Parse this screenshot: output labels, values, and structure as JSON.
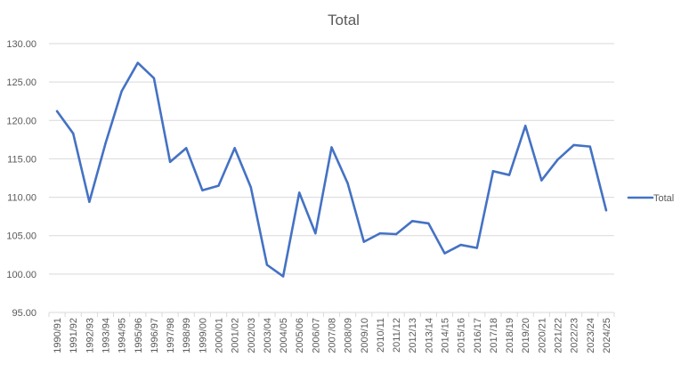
{
  "chart_data": {
    "type": "line",
    "title": "Total",
    "xlabel": "",
    "ylabel": "",
    "ylim": [
      95,
      130
    ],
    "yticks": [
      "95.00",
      "100.00",
      "105.00",
      "110.00",
      "115.00",
      "120.00",
      "125.00",
      "130.00"
    ],
    "grid": "horizontal",
    "legend_position": "right",
    "categories": [
      "1990/91",
      "1991/92",
      "1992/93",
      "1993/94",
      "1994/95",
      "1995/96",
      "1996/97",
      "1997/98",
      "1998/99",
      "1999/00",
      "2000/01",
      "2001/02",
      "2002/03",
      "2003/04",
      "2004/05",
      "2005/06",
      "2006/07",
      "2007/08",
      "2008/09",
      "2009/10",
      "2010/11",
      "2011/12",
      "2012/13",
      "2013/14",
      "2014/15",
      "2015/16",
      "2016/17",
      "2017/18",
      "2018/19",
      "2019/20",
      "2020/21",
      "2021/22",
      "2022/23",
      "2023/24",
      "2024/25"
    ],
    "series": [
      {
        "name": "Total",
        "color": "#4472C4",
        "values": [
          121.2,
          118.3,
          109.4,
          117.0,
          123.8,
          127.5,
          125.5,
          114.6,
          116.4,
          110.9,
          111.5,
          116.4,
          111.3,
          101.2,
          99.7,
          110.6,
          105.3,
          116.5,
          111.8,
          104.2,
          105.3,
          105.2,
          106.9,
          106.6,
          102.7,
          103.8,
          103.4,
          113.4,
          112.9,
          119.3,
          112.2,
          114.9,
          116.8,
          116.6,
          108.3
        ]
      }
    ]
  }
}
